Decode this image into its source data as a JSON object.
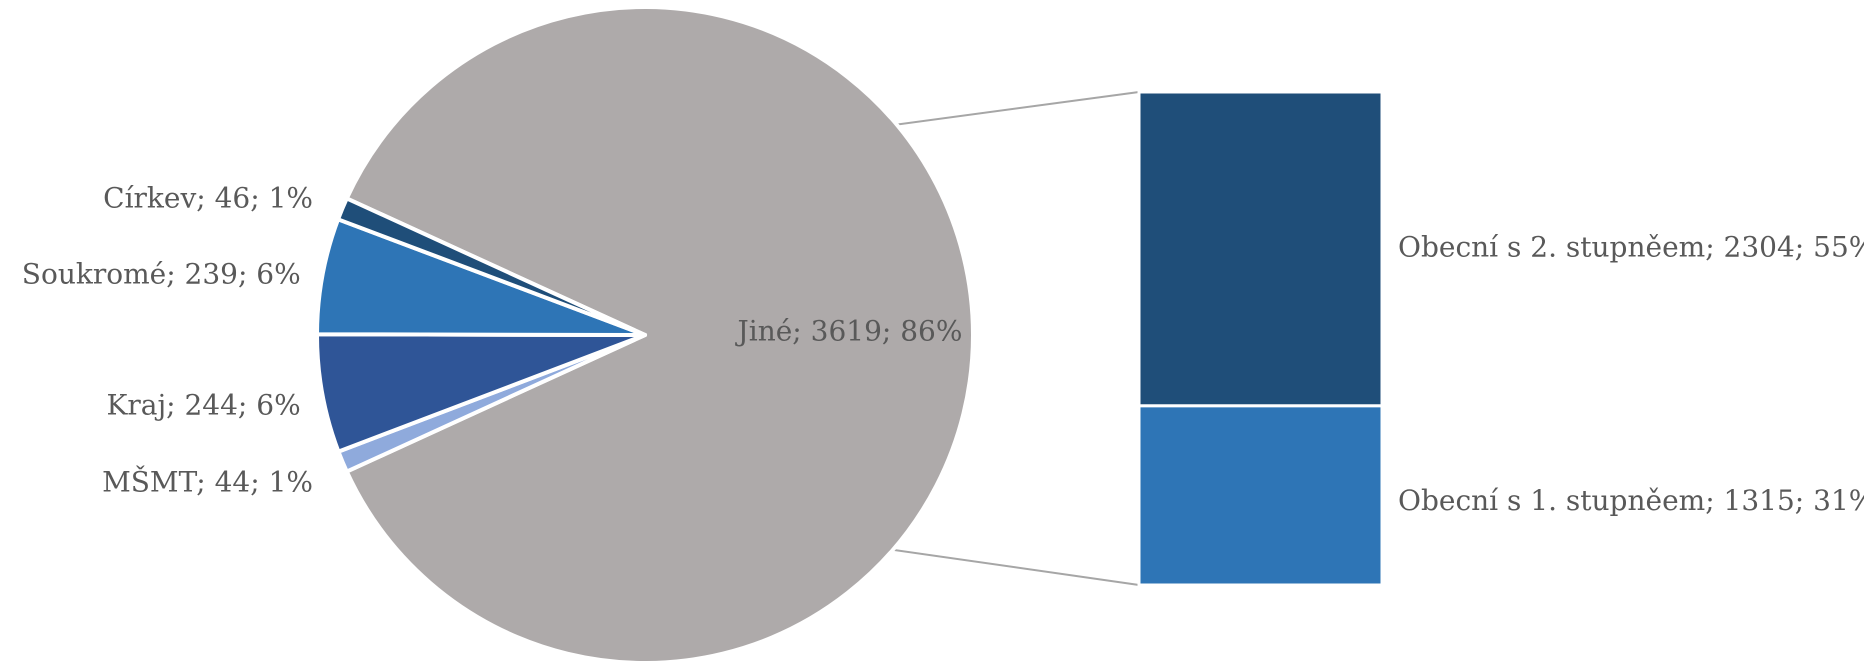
{
  "chart_data": {
    "type": "bar-of-pie",
    "pie": {
      "slices": [
        {
          "label": "Jiné",
          "value": 3619,
          "percent": "86%",
          "color": "#aeaaaa"
        },
        {
          "label": "MŠMT",
          "value": 44,
          "percent": "1%",
          "color": "#8faadc"
        },
        {
          "label": "Kraj",
          "value": 244,
          "percent": "6%",
          "color": "#2f5597"
        },
        {
          "label": "Soukromé",
          "value": 239,
          "percent": "6%",
          "color": "#2e75b6"
        },
        {
          "label": "Církev",
          "value": 46,
          "percent": "1%",
          "color": "#1f4e79"
        }
      ]
    },
    "bar": {
      "segments": [
        {
          "label": "Obecní s 2. stupněem",
          "value": 2304,
          "percent": "55%",
          "color": "#1f4e79"
        },
        {
          "label": "Obecní s 1. stupněem",
          "value": 1315,
          "percent": "31%",
          "color": "#2e75b6"
        }
      ]
    },
    "connector_color": "#a6a6a6"
  }
}
